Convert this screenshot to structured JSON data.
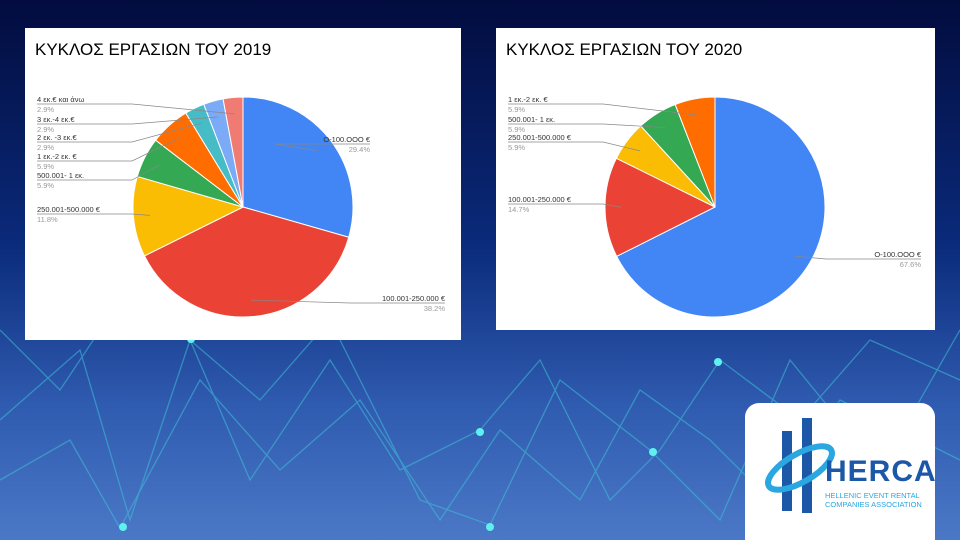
{
  "chart_data": [
    {
      "type": "pie",
      "title": "ΚΥΚΛΟΣ ΕΡΓΑΣΙΩΝ ΤΟΥ 2019",
      "slices": [
        {
          "label": "O-100.OOO €",
          "value": 29.4,
          "pct": "29.4%",
          "color": "#4285f4"
        },
        {
          "label": "100.001-250.000 €",
          "value": 38.2,
          "pct": "38.2%",
          "color": "#ea4335"
        },
        {
          "label": "250.001-500.000 €",
          "value": 11.8,
          "pct": "11.8%",
          "color": "#fbbc04"
        },
        {
          "label": "500.001- 1 εκ.",
          "value": 5.9,
          "pct": "5.9%",
          "color": "#34a853"
        },
        {
          "label": "1 εκ.-2 εκ. €",
          "value": 5.9,
          "pct": "5.9%",
          "color": "#ff6d01"
        },
        {
          "label": "2 εκ. -3 εκ.€",
          "value": 2.9,
          "pct": "2.9%",
          "color": "#46bdc6"
        },
        {
          "label": "3 εκ.-4 εκ.€",
          "value": 2.9,
          "pct": "2.9%",
          "color": "#7baaf7"
        },
        {
          "label": "4 εκ.€ και άνω",
          "value": 2.9,
          "pct": "2.9%",
          "color": "#f07b72"
        }
      ]
    },
    {
      "type": "pie",
      "title": "ΚΥΚΛΟΣ ΕΡΓΑΣΙΩΝ ΤΟΥ 2020",
      "slices": [
        {
          "label": "O-100.OOO €",
          "value": 67.6,
          "pct": "67.6%",
          "color": "#4285f4"
        },
        {
          "label": "100.001-250.000 €",
          "value": 14.7,
          "pct": "14.7%",
          "color": "#ea4335"
        },
        {
          "label": "250.001-500.000 €",
          "value": 5.9,
          "pct": "5.9%",
          "color": "#fbbc04"
        },
        {
          "label": "500.001- 1 εκ.",
          "value": 5.9,
          "pct": "5.9%",
          "color": "#34a853"
        },
        {
          "label": "1 εκ.-2 εκ. €",
          "value": 5.9,
          "pct": "5.9%",
          "color": "#ff6d01"
        }
      ]
    }
  ],
  "logo": {
    "name": "HERCA",
    "subtitle": "HELLENIC EVENT RENTAL COMPANIES ASSOCIATION"
  }
}
